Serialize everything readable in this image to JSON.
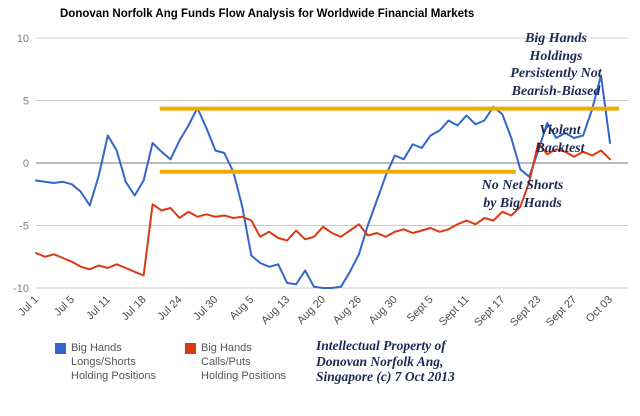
{
  "title": "Donovan Norfolk Ang Funds Flow Analysis for Worldwide Financial Markets",
  "colors": {
    "blue": "#3366CC",
    "red": "#DC3912",
    "gold": "#F0AB00",
    "grid": "#CCCCCC",
    "zero_line": "#777777",
    "axis_y_label": "#808080",
    "axis_x_label": "#4D4D4D",
    "annotation_text": "#1B2A55",
    "legend_text": "#555555",
    "title_color": "#000000"
  },
  "chart_data": {
    "type": "line",
    "title": "Donovan Norfolk Ang Funds Flow Analysis for Worldwide Financial Markets",
    "xlabel": "",
    "ylabel": "",
    "ylim": [
      -10,
      10
    ],
    "y_ticks": [
      10,
      5,
      0,
      -5,
      -10
    ],
    "grid": "horizontal",
    "legend_position": "bottom",
    "x_labels": [
      "Jul 1",
      "Jul 5",
      "Jul 11",
      "Jul 18",
      "Jul 24",
      "Jul 30",
      "Aug 5",
      "Aug 13",
      "Aug 20",
      "Aug 26",
      "Aug 30",
      "Sept 5",
      "Sept 11",
      "Sept 17",
      "Sept 23",
      "Sept 27",
      "Oct 03"
    ],
    "label_every": 4,
    "series": [
      {
        "name": "Big Hands Longs/Shorts Holding Positions",
        "color_key": "blue",
        "values": [
          -1.4,
          -1.5,
          -1.6,
          -1.5,
          -1.7,
          -2.3,
          -3.4,
          -1.0,
          2.2,
          1.0,
          -1.5,
          -2.6,
          -1.4,
          1.6,
          0.9,
          0.3,
          1.8,
          3.0,
          4.4,
          2.8,
          1.0,
          0.8,
          -0.7,
          -3.5,
          -7.4,
          -8.0,
          -8.3,
          -8.1,
          -9.6,
          -9.7,
          -8.6,
          -9.9,
          -10.0,
          -10.0,
          -9.9,
          -8.7,
          -7.3,
          -5.0,
          -3.0,
          -1.0,
          0.6,
          0.3,
          1.5,
          1.2,
          2.2,
          2.6,
          3.4,
          3.0,
          3.8,
          3.1,
          3.4,
          4.5,
          3.9,
          2.0,
          -0.5,
          -1.1,
          1.0,
          3.2,
          2.0,
          2.4,
          2.0,
          2.2,
          4.3,
          7.0,
          1.6
        ]
      },
      {
        "name": "Big Hands Calls/Puts Holding Positions",
        "color_key": "red",
        "values": [
          -7.2,
          -7.5,
          -7.3,
          -7.6,
          -7.9,
          -8.3,
          -8.5,
          -8.2,
          -8.4,
          -8.1,
          -8.4,
          -8.7,
          -9.0,
          -3.3,
          -3.8,
          -3.6,
          -4.4,
          -3.9,
          -4.3,
          -4.1,
          -4.3,
          -4.2,
          -4.4,
          -4.3,
          -4.6,
          -5.9,
          -5.5,
          -6.0,
          -6.2,
          -5.4,
          -6.1,
          -5.9,
          -5.1,
          -5.6,
          -5.9,
          -5.4,
          -4.9,
          -5.8,
          -5.6,
          -5.9,
          -5.5,
          -5.3,
          -5.6,
          -5.4,
          -5.2,
          -5.5,
          -5.3,
          -4.9,
          -4.6,
          -4.9,
          -4.4,
          -4.6,
          -3.9,
          -4.2,
          -3.5,
          -1.5,
          1.6,
          0.7,
          1.1,
          0.9,
          0.5,
          0.9,
          0.6,
          1.0,
          0.3
        ]
      }
    ],
    "reference_lines": [
      {
        "y": 4.35,
        "x_start_index": 13.8,
        "x_end_index": 65,
        "color_key": "gold"
      },
      {
        "y": -0.7,
        "x_start_index": 13.8,
        "x_end_index": 53.5,
        "color_key": "gold"
      }
    ]
  },
  "annotations": [
    {
      "lines": [
        "Big Hands",
        "Holdings",
        "Persistently Not",
        "Bearish-Biased"
      ]
    },
    {
      "lines": [
        "Violent",
        "Backtest"
      ]
    },
    {
      "lines": [
        "No Net Shorts",
        "by Big Hands"
      ]
    }
  ],
  "legend": [
    {
      "color_key": "blue",
      "lines": [
        "Big Hands",
        "Longs/Shorts",
        "Holding Positions"
      ]
    },
    {
      "color_key": "red",
      "lines": [
        "Big Hands",
        "Calls/Puts",
        "Holding Positions"
      ]
    }
  ],
  "copyright": {
    "lines": [
      "Intellectual Property of",
      "Donovan Norfolk Ang,",
      "Singapore (c) 7 Oct 2013"
    ]
  }
}
